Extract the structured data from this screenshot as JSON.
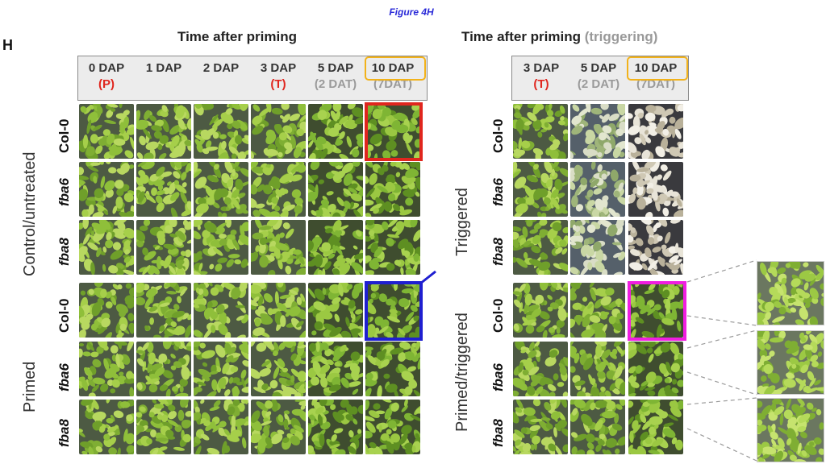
{
  "figure_label": "Figure 4H",
  "panel_letter": "H",
  "left_panel": {
    "title": "Time after priming",
    "columns": [
      {
        "line1": "0 DAP",
        "line2": "(P)"
      },
      {
        "line1": "",
        "line2": "1 DAP"
      },
      {
        "line1": "",
        "line2": "2 DAP"
      },
      {
        "line1": "3 DAP",
        "line2": "(T)"
      },
      {
        "line1": "5 DAP",
        "line2": "(2 DAT)"
      },
      {
        "line1": "10 DAP",
        "line2": "(7DAT)"
      }
    ],
    "group_labels": [
      "Control/untreated",
      "Primed"
    ],
    "row_labels": [
      "Col-0",
      "fba6",
      "fba8",
      "Col-0",
      "fba6",
      "fba8"
    ]
  },
  "right_panel": {
    "title": "Time after priming",
    "title_suffix": "(triggering)",
    "columns": [
      {
        "line1": "3 DAP",
        "line2": "(T)"
      },
      {
        "line1": "5 DAP",
        "line2": "(2 DAT)"
      },
      {
        "line1": "10 DAP",
        "line2": "(7DAT)"
      }
    ],
    "group_labels": [
      "Triggered",
      "Primed/triggered"
    ],
    "row_labels": [
      "Col-0",
      "fba6",
      "fba8",
      "Col-0",
      "fba6",
      "fba8"
    ]
  },
  "colors": {
    "highlight_red": "#e0261e",
    "highlight_blue": "#1f1fd0",
    "highlight_magenta": "#f01ee0",
    "header_outline": "#f2b21a",
    "label_red": "#e0261e",
    "label_gray": "#9a9a9a"
  }
}
